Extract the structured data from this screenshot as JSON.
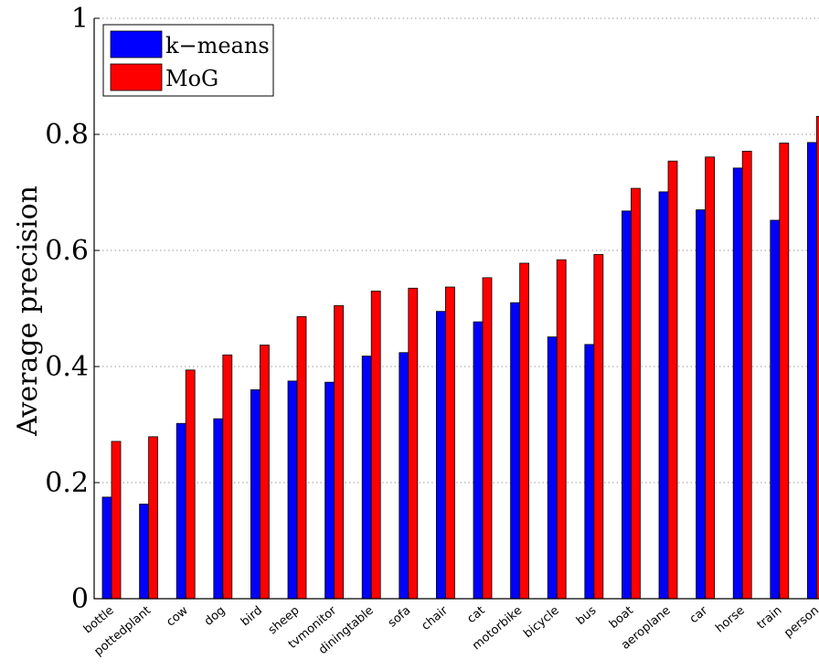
{
  "chart_data": {
    "type": "bar",
    "title": "",
    "xlabel": "",
    "ylabel": "Average precision",
    "ylim": [
      0,
      1
    ],
    "yticks": [
      "0",
      "0.2",
      "0.4",
      "0.6",
      "0.8",
      "1"
    ],
    "ytick_values": [
      0,
      0.2,
      0.4,
      0.6,
      0.8,
      1
    ],
    "grid": true,
    "legend_position": "top-left",
    "categories": [
      "bottle",
      "pottedplant",
      "cow",
      "dog",
      "bird",
      "sheep",
      "tvmonitor",
      "diningtable",
      "sofa",
      "chair",
      "cat",
      "motorbike",
      "bicycle",
      "bus",
      "boat",
      "aeroplane",
      "car",
      "horse",
      "train",
      "person"
    ],
    "series": [
      {
        "name": "k−means",
        "color": "#0000ff",
        "values": [
          0.175,
          0.163,
          0.302,
          0.31,
          0.36,
          0.375,
          0.373,
          0.418,
          0.424,
          0.495,
          0.477,
          0.51,
          0.451,
          0.438,
          0.668,
          0.701,
          0.67,
          0.742,
          0.652,
          0.786
        ]
      },
      {
        "name": "MoG",
        "color": "#ff0000",
        "values": [
          0.271,
          0.279,
          0.394,
          0.42,
          0.437,
          0.486,
          0.505,
          0.53,
          0.535,
          0.537,
          0.553,
          0.578,
          0.584,
          0.593,
          0.707,
          0.754,
          0.761,
          0.771,
          0.785,
          0.831
        ]
      }
    ]
  }
}
